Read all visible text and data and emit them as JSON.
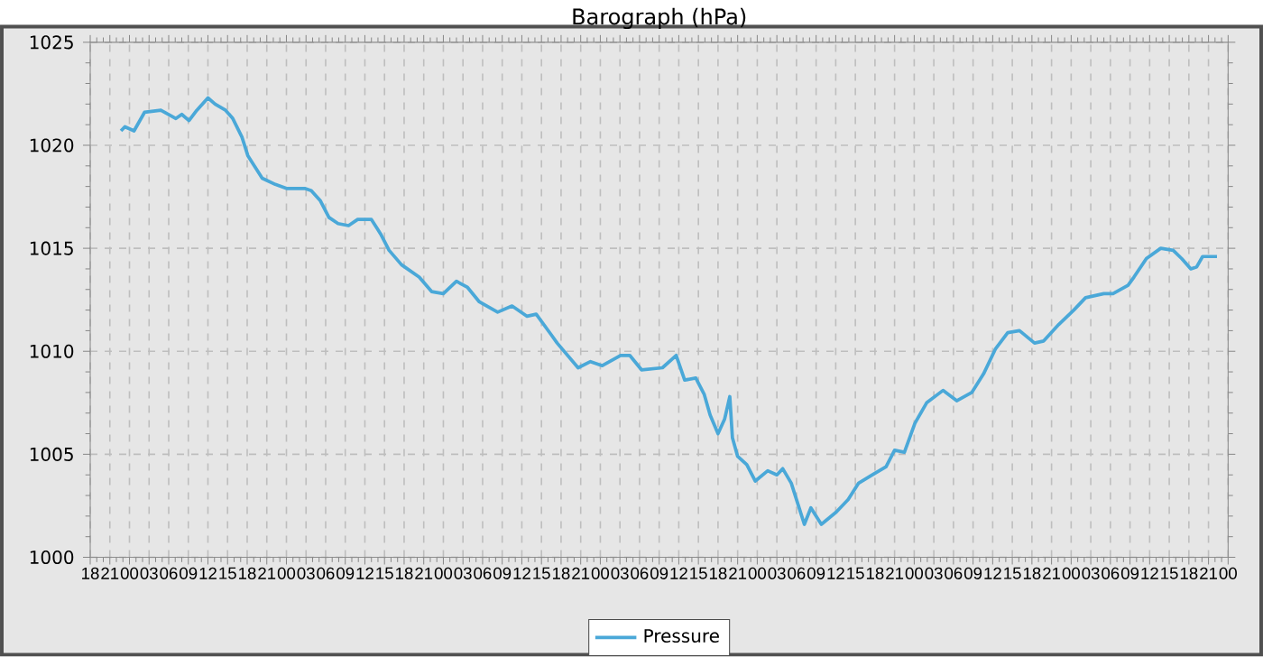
{
  "chart_data": {
    "type": "line",
    "title": "Barograph (hPa)",
    "x": [
      22.7,
      23.3,
      24.7,
      26.3,
      28.8,
      31.1,
      32.0,
      33.1,
      34.3,
      36.0,
      37.1,
      38.7,
      39.8,
      41.2,
      42.1,
      44.3,
      46.3,
      48.1,
      50.9,
      51.8,
      53.2,
      54.5,
      55.9,
      57.5,
      58.9,
      61.0,
      62.4,
      63.7,
      65.6,
      68.3,
      70.2,
      72.0,
      74.0,
      75.7,
      77.5,
      80.3,
      82.5,
      84.8,
      86.2,
      88.5,
      89.4,
      92.6,
      94.5,
      96.3,
      99.1,
      100.5,
      102.3,
      105.5,
      107.6,
      108.9,
      110.6,
      111.9,
      112.8,
      114.0,
      115.0,
      115.8,
      116.2,
      117.0,
      118.4,
      119.7,
      121.6,
      123.0,
      123.9,
      125.2,
      126.3,
      127.2,
      128.2,
      129.8,
      132.1,
      133.9,
      135.5,
      137.6,
      139.7,
      141.0,
      142.5,
      144.1,
      145.9,
      148.4,
      150.5,
      152.8,
      154.6,
      156.4,
      158.3,
      160.1,
      162.4,
      163.8,
      166.1,
      168.4,
      170.2,
      173.0,
      174.4,
      176.7,
      177.6,
      179.5,
      181.7,
      183.6,
      184.9,
      186.3,
      187.2,
      188.1,
      190.3
    ],
    "series": [
      {
        "name": "Pressure",
        "color": "#4aa8d8",
        "values": [
          1020.7,
          1020.9,
          1020.7,
          1021.6,
          1021.7,
          1021.3,
          1021.5,
          1021.2,
          1021.7,
          1022.3,
          1022.0,
          1021.7,
          1021.3,
          1020.4,
          1019.5,
          1018.4,
          1018.1,
          1017.9,
          1017.9,
          1017.8,
          1017.3,
          1016.5,
          1016.2,
          1016.1,
          1016.4,
          1016.4,
          1015.7,
          1014.9,
          1014.2,
          1013.6,
          1012.9,
          1012.8,
          1013.4,
          1013.1,
          1012.4,
          1011.9,
          1012.2,
          1011.7,
          1011.8,
          1010.8,
          1010.4,
          1009.2,
          1009.5,
          1009.3,
          1009.8,
          1009.8,
          1009.1,
          1009.2,
          1009.8,
          1008.6,
          1008.7,
          1007.9,
          1006.9,
          1006.0,
          1006.7,
          1007.8,
          1005.8,
          1004.9,
          1004.5,
          1003.7,
          1004.2,
          1004.0,
          1004.3,
          1003.6,
          1002.5,
          1001.6,
          1002.4,
          1001.6,
          1002.2,
          1002.8,
          1003.6,
          1004.0,
          1004.4,
          1005.2,
          1005.1,
          1006.5,
          1007.5,
          1008.1,
          1007.6,
          1008.0,
          1008.9,
          1010.1,
          1010.9,
          1011.0,
          1010.4,
          1010.5,
          1011.3,
          1012.0,
          1012.6,
          1012.8,
          1012.8,
          1013.2,
          1013.6,
          1014.5,
          1015.0,
          1014.9,
          1014.5,
          1014.0,
          1014.1,
          1014.6,
          1014.6
        ]
      }
    ],
    "xlim": [
      18,
      192
    ],
    "xticks": [
      18,
      21,
      {
        "value": 24,
        "label": "00"
      },
      {
        "value": 27,
        "label": "03"
      },
      {
        "value": 30,
        "label": "06"
      },
      {
        "value": 33,
        "label": "09"
      },
      {
        "value": 36,
        "label": "12"
      },
      {
        "value": 39,
        "label": "15"
      },
      {
        "value": 42,
        "label": "18"
      },
      {
        "value": 45,
        "label": "21"
      },
      {
        "value": 48,
        "label": "00"
      },
      {
        "value": 51,
        "label": "03"
      },
      {
        "value": 54,
        "label": "06"
      },
      {
        "value": 57,
        "label": "09"
      },
      {
        "value": 60,
        "label": "12"
      },
      {
        "value": 63,
        "label": "15"
      },
      {
        "value": 66,
        "label": "18"
      },
      {
        "value": 69,
        "label": "21"
      },
      {
        "value": 72,
        "label": "00"
      },
      {
        "value": 75,
        "label": "03"
      },
      {
        "value": 78,
        "label": "06"
      },
      {
        "value": 81,
        "label": "09"
      },
      {
        "value": 84,
        "label": "12"
      },
      {
        "value": 87,
        "label": "15"
      },
      {
        "value": 90,
        "label": "18"
      },
      {
        "value": 93,
        "label": "21"
      },
      {
        "value": 96,
        "label": "00"
      },
      {
        "value": 99,
        "label": "03"
      },
      {
        "value": 102,
        "label": "06"
      },
      {
        "value": 105,
        "label": "09"
      },
      {
        "value": 108,
        "label": "12"
      },
      {
        "value": 111,
        "label": "15"
      },
      {
        "value": 114,
        "label": "18"
      },
      {
        "value": 117,
        "label": "21"
      },
      {
        "value": 120,
        "label": "00"
      },
      {
        "value": 123,
        "label": "03"
      },
      {
        "value": 126,
        "label": "06"
      },
      {
        "value": 129,
        "label": "09"
      },
      {
        "value": 132,
        "label": "12"
      },
      {
        "value": 135,
        "label": "15"
      },
      {
        "value": 138,
        "label": "18"
      },
      {
        "value": 141,
        "label": "21"
      },
      {
        "value": 144,
        "label": "00"
      },
      {
        "value": 147,
        "label": "03"
      },
      {
        "value": 150,
        "label": "06"
      },
      {
        "value": 153,
        "label": "09"
      },
      {
        "value": 156,
        "label": "12"
      },
      {
        "value": 159,
        "label": "15"
      },
      {
        "value": 162,
        "label": "18"
      },
      {
        "value": 165,
        "label": "21"
      },
      {
        "value": 168,
        "label": "00"
      },
      {
        "value": 171,
        "label": "03"
      },
      {
        "value": 174,
        "label": "06"
      },
      {
        "value": 177,
        "label": "09"
      },
      {
        "value": 180,
        "label": "12"
      },
      {
        "value": 183,
        "label": "15"
      },
      {
        "value": 186,
        "label": "18"
      },
      {
        "value": 189,
        "label": "21"
      },
      {
        "value": 192,
        "label": "00"
      }
    ],
    "ylim": [
      1000,
      1025
    ],
    "yticks": [
      1000,
      1005,
      1010,
      1015,
      1020,
      1025
    ],
    "grid": true,
    "legend": "bottom",
    "marker": "none",
    "line_style": "solid"
  }
}
